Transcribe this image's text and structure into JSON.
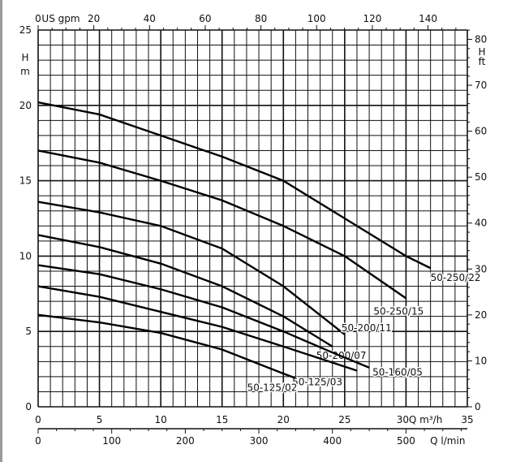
{
  "chart_data": {
    "type": "line",
    "title": "",
    "xlabel": "Q m³/h",
    "xlabel_lmin": "Q l/min",
    "xlabel_gpm": "US gpm",
    "ylabel": "H",
    "ylabel_unit": "m",
    "ylabel_right": "H",
    "ylabel_right_unit": "ft",
    "xlim": [
      0,
      35
    ],
    "ylim": [
      0,
      25
    ],
    "ylim_ft": [
      0,
      82
    ],
    "grid": true,
    "x_ticks": [
      0,
      5,
      10,
      15,
      20,
      25,
      30,
      35
    ],
    "y_ticks": [
      0,
      5,
      10,
      15,
      20,
      25
    ],
    "ft_ticks": [
      0,
      10,
      20,
      30,
      40,
      50,
      60,
      70,
      80
    ],
    "lmin_ticks": [
      0,
      100,
      200,
      300,
      400,
      500
    ],
    "gpm_ticks": [
      0,
      20,
      40,
      60,
      80,
      100,
      120,
      140
    ],
    "series": [
      {
        "name": "50-250/22",
        "points": [
          [
            0,
            20.2
          ],
          [
            5,
            19.4
          ],
          [
            10,
            18.0
          ],
          [
            15,
            16.6
          ],
          [
            20,
            15.0
          ],
          [
            25,
            12.5
          ],
          [
            30,
            10.0
          ],
          [
            32,
            9.2
          ]
        ]
      },
      {
        "name": "50-250/15",
        "points": [
          [
            0,
            17.0
          ],
          [
            5,
            16.2
          ],
          [
            10,
            15.0
          ],
          [
            15,
            13.7
          ],
          [
            20,
            12.0
          ],
          [
            25,
            10.0
          ],
          [
            30,
            7.2
          ]
        ]
      },
      {
        "name": "50-200/11",
        "points": [
          [
            0,
            13.6
          ],
          [
            5,
            12.9
          ],
          [
            10,
            12.0
          ],
          [
            15,
            10.5
          ],
          [
            20,
            8.0
          ],
          [
            25,
            4.8
          ]
        ]
      },
      {
        "name": "50-200/07",
        "points": [
          [
            0,
            11.4
          ],
          [
            5,
            10.6
          ],
          [
            10,
            9.5
          ],
          [
            15,
            8.0
          ],
          [
            20,
            6.0
          ],
          [
            24,
            4.0
          ]
        ]
      },
      {
        "name": "50-160/05",
        "points": [
          [
            0,
            9.4
          ],
          [
            5,
            8.8
          ],
          [
            10,
            7.8
          ],
          [
            15,
            6.6
          ],
          [
            20,
            5.0
          ],
          [
            24,
            3.6
          ],
          [
            27,
            2.6
          ]
        ]
      },
      {
        "name": "50-125/03",
        "points": [
          [
            0,
            8.0
          ],
          [
            5,
            7.3
          ],
          [
            10,
            6.3
          ],
          [
            15,
            5.3
          ],
          [
            20,
            4.0
          ],
          [
            26,
            2.4
          ]
        ]
      },
      {
        "name": "50-125/02",
        "points": [
          [
            0,
            6.1
          ],
          [
            5,
            5.6
          ],
          [
            10,
            4.9
          ],
          [
            15,
            3.8
          ],
          [
            20,
            2.2
          ],
          [
            21,
            1.9
          ]
        ]
      }
    ]
  }
}
